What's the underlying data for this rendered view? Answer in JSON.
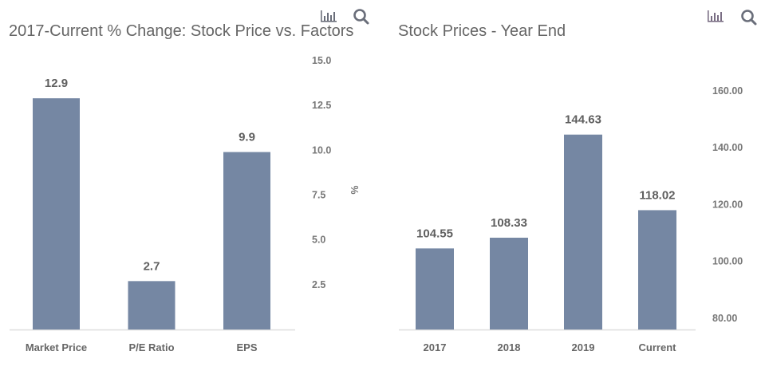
{
  "colors": {
    "bar": "#7587a3",
    "axis": "#dddddd",
    "title": "#666666",
    "tick": "#777777"
  },
  "icons": {
    "chart": "bar-chart-icon",
    "search": "search-icon"
  },
  "chart_data": [
    {
      "type": "bar",
      "title": "2017-Current % Change: Stock Price vs. Factors",
      "xlabel": "",
      "ylabel": "%",
      "categories": [
        "Market Price",
        "P/E Ratio",
        "EPS"
      ],
      "values": [
        12.9,
        2.7,
        9.9
      ],
      "data_labels": [
        "12.9",
        "2.7",
        "9.9"
      ],
      "ylim": [
        0,
        15.0
      ],
      "yticks": [
        2.5,
        5.0,
        7.5,
        10.0,
        12.5,
        15.0
      ],
      "ytick_labels": [
        "2.5",
        "5.0",
        "7.5",
        "10.0",
        "12.5",
        "15.0"
      ],
      "y_axis_side": "right",
      "grid": false,
      "legend": "none"
    },
    {
      "type": "bar",
      "title": "Stock Prices - Year End",
      "xlabel": "",
      "ylabel": "",
      "categories": [
        "2017",
        "2018",
        "2019",
        "Current"
      ],
      "values": [
        104.55,
        108.33,
        144.63,
        118.02
      ],
      "data_labels": [
        "104.55",
        "108.33",
        "144.63",
        "118.02"
      ],
      "ylim": [
        76,
        160
      ],
      "yticks": [
        80,
        100,
        120,
        140,
        160
      ],
      "ytick_labels": [
        "80.00",
        "100.00",
        "120.00",
        "140.00",
        "160.00"
      ],
      "y_axis_side": "right",
      "grid": false,
      "legend": "none"
    }
  ]
}
